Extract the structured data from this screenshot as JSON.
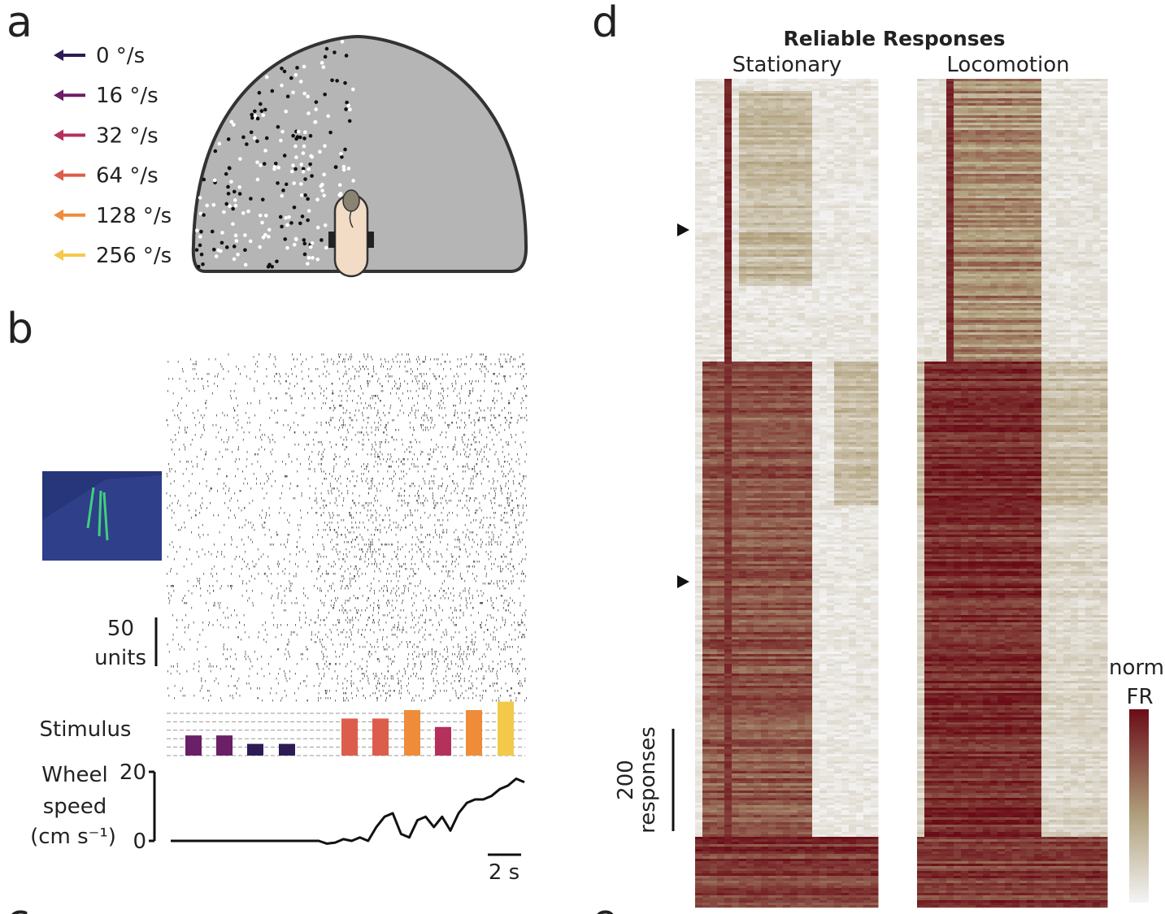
{
  "panel_a": {
    "letter": "a",
    "legend": [
      {
        "value": 0,
        "label": "0 °/s",
        "color": "#2d1b54"
      },
      {
        "value": 16,
        "label": "16 °/s",
        "color": "#6a1f67"
      },
      {
        "value": 32,
        "label": "32 °/s",
        "color": "#b3315a"
      },
      {
        "value": 64,
        "label": "64 °/s",
        "color": "#dd5d4c"
      },
      {
        "value": 128,
        "label": "128 °/s",
        "color": "#ef8c3a"
      },
      {
        "value": 256,
        "label": "256 °/s",
        "color": "#f3c94a"
      }
    ]
  },
  "panel_b": {
    "letter": "b",
    "units_scale": {
      "value": 50,
      "label": "units"
    },
    "stimulus": {
      "label": "Stimulus",
      "values": [
        16,
        16,
        0,
        0,
        64,
        64,
        128,
        32,
        128,
        256
      ]
    },
    "wheel_speed": {
      "label": [
        "Wheel",
        "speed",
        "(cm s⁻¹)"
      ],
      "ylim": [
        0,
        20
      ],
      "yticks": [
        0,
        20
      ],
      "values": [
        0,
        0,
        0,
        0,
        0,
        0,
        0,
        0,
        0,
        0,
        0,
        0,
        0,
        0,
        0,
        0,
        0,
        0,
        0,
        -0.8,
        -0.5,
        0.5,
        0,
        1,
        0,
        4,
        7,
        8,
        2,
        1,
        6,
        7,
        4,
        7,
        3,
        8,
        11,
        12,
        12,
        13,
        15,
        16,
        18,
        17
      ]
    },
    "time_scale": "2 s"
  },
  "panel_c": {
    "letter": "c"
  },
  "panel_d": {
    "letter": "d",
    "title": "Reliable Responses",
    "conditions": [
      {
        "name": "Stationary",
        "color": "#333333"
      },
      {
        "name": "Locomotion",
        "color": "#b5334a"
      }
    ],
    "response_scale": {
      "value": 200,
      "label": "responses"
    },
    "colorbar": [
      "norm",
      "FR"
    ]
  },
  "panel_e": {
    "letter": "e"
  }
}
